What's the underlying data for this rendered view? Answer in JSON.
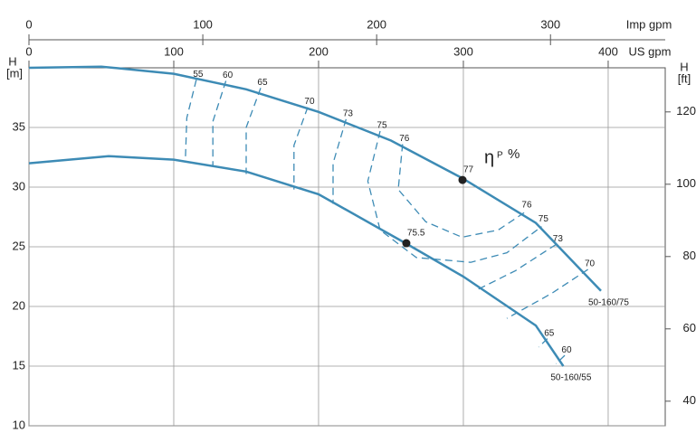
{
  "chart_data": {
    "type": "line",
    "x_label": "US gpm",
    "x2_label": "Imp gpm",
    "y_label": "H",
    "y_unit": "[m]",
    "y2_label": "H",
    "y2_unit": "[ft]",
    "efficiency_label": "η",
    "efficiency_sub": "P",
    "efficiency_unit": "%",
    "xlim": [
      0,
      439.4
    ],
    "xticks": [
      0,
      100,
      200,
      300,
      400
    ],
    "x2lim": [
      0,
      366
    ],
    "x2ticks": [
      0,
      100,
      200,
      300
    ],
    "ylim": [
      10,
      40
    ],
    "yticks": [
      10,
      15,
      20,
      25,
      30,
      35
    ],
    "y2lim": [
      33.2,
      132.2
    ],
    "y2ticks": [
      40,
      60,
      80,
      100,
      120
    ],
    "grid": true,
    "color": "#3d8bb5",
    "series": [
      {
        "name": "50-160/75",
        "color": "#3d8bb5",
        "x": [
          0,
          50,
          100,
          150,
          200,
          250,
          300,
          350,
          395
        ],
        "values": [
          40,
          40.1,
          39.5,
          38.2,
          36.3,
          33.9,
          30.7,
          27.0,
          21.3
        ]
      },
      {
        "name": "50-160/55",
        "color": "#3d8bb5",
        "x": [
          0,
          55,
          100,
          150,
          200,
          260,
          300,
          350,
          369
        ],
        "values": [
          32.0,
          32.6,
          32.3,
          31.3,
          29.4,
          25.3,
          22.5,
          18.4,
          15.0
        ]
      }
    ],
    "points": [
      {
        "value": 77,
        "x": 299.4,
        "y": 30.6
      },
      {
        "value": 75.5,
        "x": 260.6,
        "y": 25.3
      }
    ],
    "contours": [
      {
        "value": 55,
        "x": [
          115.6,
          109,
          108
        ],
        "values": [
          39.0,
          35.8,
          32.2
        ]
      },
      {
        "value": 60,
        "x": [
          136,
          127,
          127
        ],
        "values": [
          38.9,
          35.5,
          31.8
        ]
      },
      {
        "value": 65,
        "x": [
          160,
          150,
          150
        ],
        "values": [
          38.3,
          35,
          31.1
        ]
      },
      {
        "value": 70,
        "x": [
          192.5,
          183,
          183
        ],
        "values": [
          36.7,
          33.5,
          29.8
        ]
      },
      {
        "value": 73,
        "x": [
          219,
          210,
          210
        ],
        "values": [
          35.7,
          32,
          28.6
        ]
      },
      {
        "value": 75,
        "x": [
          242.5,
          234,
          242.5,
          267.5,
          305,
          330,
          354
        ],
        "values": [
          34.7,
          30.5,
          26.4,
          24.1,
          23.7,
          24.5,
          26.7
        ]
      },
      {
        "value": 76,
        "x": [
          258,
          255,
          274,
          299,
          324,
          342.5
        ],
        "values": [
          33.6,
          29.8,
          27.1,
          25.8,
          26.4,
          27.9
        ]
      },
      {
        "value": 73,
        "x": [
          364,
          336,
          308
        ],
        "values": [
          25.2,
          23,
          21.3
        ]
      },
      {
        "value": 70,
        "x": [
          386,
          361,
          330
        ],
        "values": [
          23.1,
          21.1,
          19.0
        ]
      },
      {
        "value": 65,
        "x": [
          358,
          352
        ],
        "values": [
          17.3,
          16.6
        ]
      },
      {
        "value": 60,
        "x": [
          370,
          364
        ],
        "values": [
          15.9,
          15.2
        ]
      }
    ]
  }
}
